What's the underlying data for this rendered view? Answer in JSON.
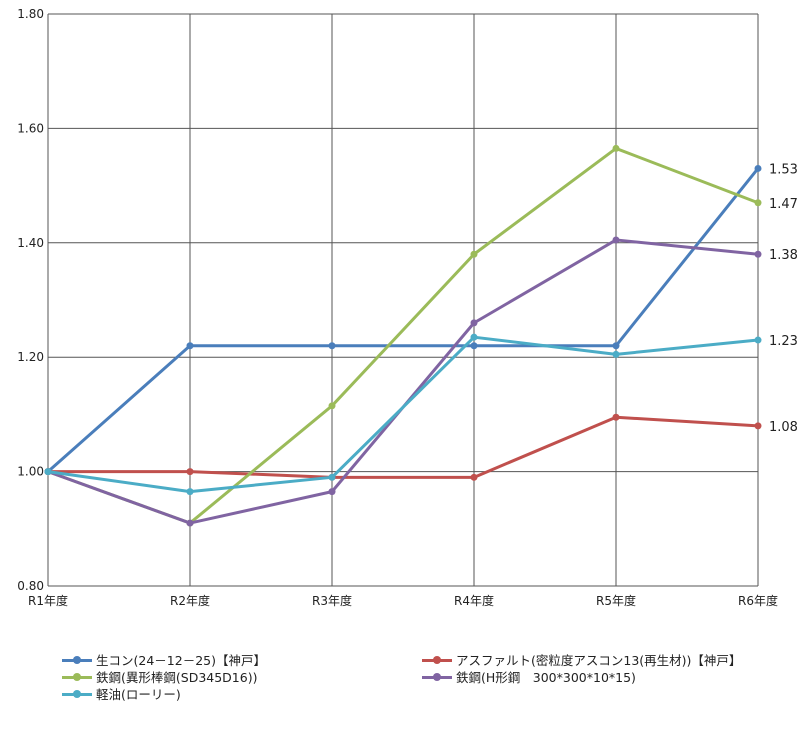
{
  "chart_data": {
    "type": "line",
    "categories": [
      "R1年度",
      "R2年度",
      "R3年度",
      "R4年度",
      "R5年度",
      "R6年度"
    ],
    "ylim": [
      0.8,
      1.8
    ],
    "yticks": [
      "0.80",
      "1.00",
      "1.20",
      "1.40",
      "1.60",
      "1.80"
    ],
    "grid": true,
    "legend_position": "bottom",
    "series": [
      {
        "name": "生コン(24－12－25)【神戸】",
        "color": "#4a7ebb",
        "values": [
          1.0,
          1.22,
          1.22,
          1.22,
          1.22,
          1.53
        ],
        "end_label": "1.53"
      },
      {
        "name": "アスファルト(密粒度アスコン13(再生材))【神戸】",
        "color": "#c0504d",
        "values": [
          1.0,
          1.0,
          0.99,
          0.99,
          1.095,
          1.08
        ],
        "end_label": "1.08"
      },
      {
        "name": "鉄鋼(異形棒鋼(SD345D16))",
        "color": "#9bbb59",
        "values": [
          1.0,
          0.91,
          1.115,
          1.38,
          1.565,
          1.47
        ],
        "end_label": "1.47"
      },
      {
        "name": "鉄鋼(H形鋼　300*300*10*15)",
        "color": "#8064a2",
        "values": [
          1.0,
          0.91,
          0.965,
          1.26,
          1.405,
          1.38
        ],
        "end_label": "1.38"
      },
      {
        "name": "軽油(ローリー)",
        "color": "#4bacc6",
        "values": [
          1.0,
          0.965,
          0.99,
          1.235,
          1.205,
          1.23
        ],
        "end_label": "1.23"
      }
    ]
  }
}
